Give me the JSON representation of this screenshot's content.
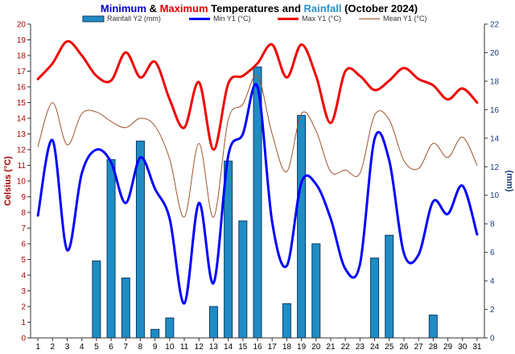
{
  "chart_data": {
    "type": "bar+line",
    "title": {
      "parts": [
        {
          "text": "Minimum",
          "color": "#0000cc"
        },
        {
          "text": " & ",
          "color": "#000000"
        },
        {
          "text": "Maximum",
          "color": "#dd0000"
        },
        {
          "text": " Temperatures and ",
          "color": "#000000"
        },
        {
          "text": "Rainfall",
          "color": "#2c8fc8"
        },
        {
          "text": " (October 2024)",
          "color": "#000000"
        }
      ]
    },
    "x": [
      1,
      2,
      3,
      4,
      5,
      6,
      7,
      8,
      9,
      10,
      11,
      12,
      13,
      14,
      15,
      16,
      17,
      18,
      19,
      20,
      21,
      22,
      23,
      24,
      25,
      26,
      27,
      28,
      29,
      30,
      31
    ],
    "y_left": {
      "label": "Celsius (°C)",
      "label_color": "#aa0000",
      "min": 0,
      "max": 20,
      "step": 1
    },
    "y_right": {
      "label": "(mm)",
      "label_color": "#1a3a7a",
      "min": 0,
      "max": 22,
      "step": 2
    },
    "grid": false,
    "legend_position": "top",
    "series": [
      {
        "name": "Rainfall Y2 (mm)",
        "kind": "bar",
        "axis": "right",
        "color": "#1f8cc4",
        "edge": "#0b3d66",
        "values": [
          0,
          0,
          0,
          0,
          5.4,
          12.5,
          4.2,
          13.8,
          0.6,
          1.4,
          0,
          0,
          2.2,
          12.4,
          8.2,
          19,
          0,
          2.4,
          15.6,
          6.6,
          0,
          0,
          0,
          5.6,
          7.2,
          0,
          0,
          1.6,
          0,
          0,
          0
        ]
      },
      {
        "name": "Min Y1 (°C)",
        "kind": "line",
        "axis": "left",
        "color": "#0000ff",
        "width": 3,
        "values": [
          7.8,
          12.6,
          5.6,
          10.5,
          12,
          11.2,
          8.6,
          11.5,
          9.5,
          7.6,
          2.2,
          8.6,
          3.5,
          11.6,
          13,
          16,
          7.4,
          4.6,
          9.9,
          9.8,
          7.6,
          4.4,
          4.7,
          12.7,
          11.3,
          5.4,
          5.3,
          8.7,
          7.9,
          9.7,
          6.6
        ]
      },
      {
        "name": "Max Y1 (°C)",
        "kind": "line",
        "axis": "left",
        "color": "#ee0000",
        "width": 3,
        "values": [
          16.5,
          17.5,
          18.9,
          18,
          16.7,
          16.4,
          18.2,
          16.6,
          17.6,
          15.2,
          13.4,
          16.3,
          12,
          16.2,
          16.7,
          17.5,
          18.7,
          16.6,
          18.7,
          16.7,
          13.7,
          17,
          16.7,
          15.8,
          16.4,
          17.2,
          16.5,
          16.1,
          15.2,
          15.9,
          15
        ]
      },
      {
        "name": "Mean Y1 (°C)",
        "kind": "line",
        "axis": "left",
        "color": "#a0522d",
        "width": 1,
        "values": [
          12.2,
          15,
          12.3,
          14.3,
          14.4,
          13.8,
          13.4,
          14,
          13.5,
          11.4,
          7.7,
          12.4,
          7.7,
          13.9,
          14.9,
          16.7,
          13,
          10.6,
          14.3,
          13.2,
          10.6,
          10.7,
          10.5,
          14.2,
          13.9,
          11.3,
          10.8,
          12.4,
          11.5,
          12.8,
          11
        ]
      }
    ]
  }
}
